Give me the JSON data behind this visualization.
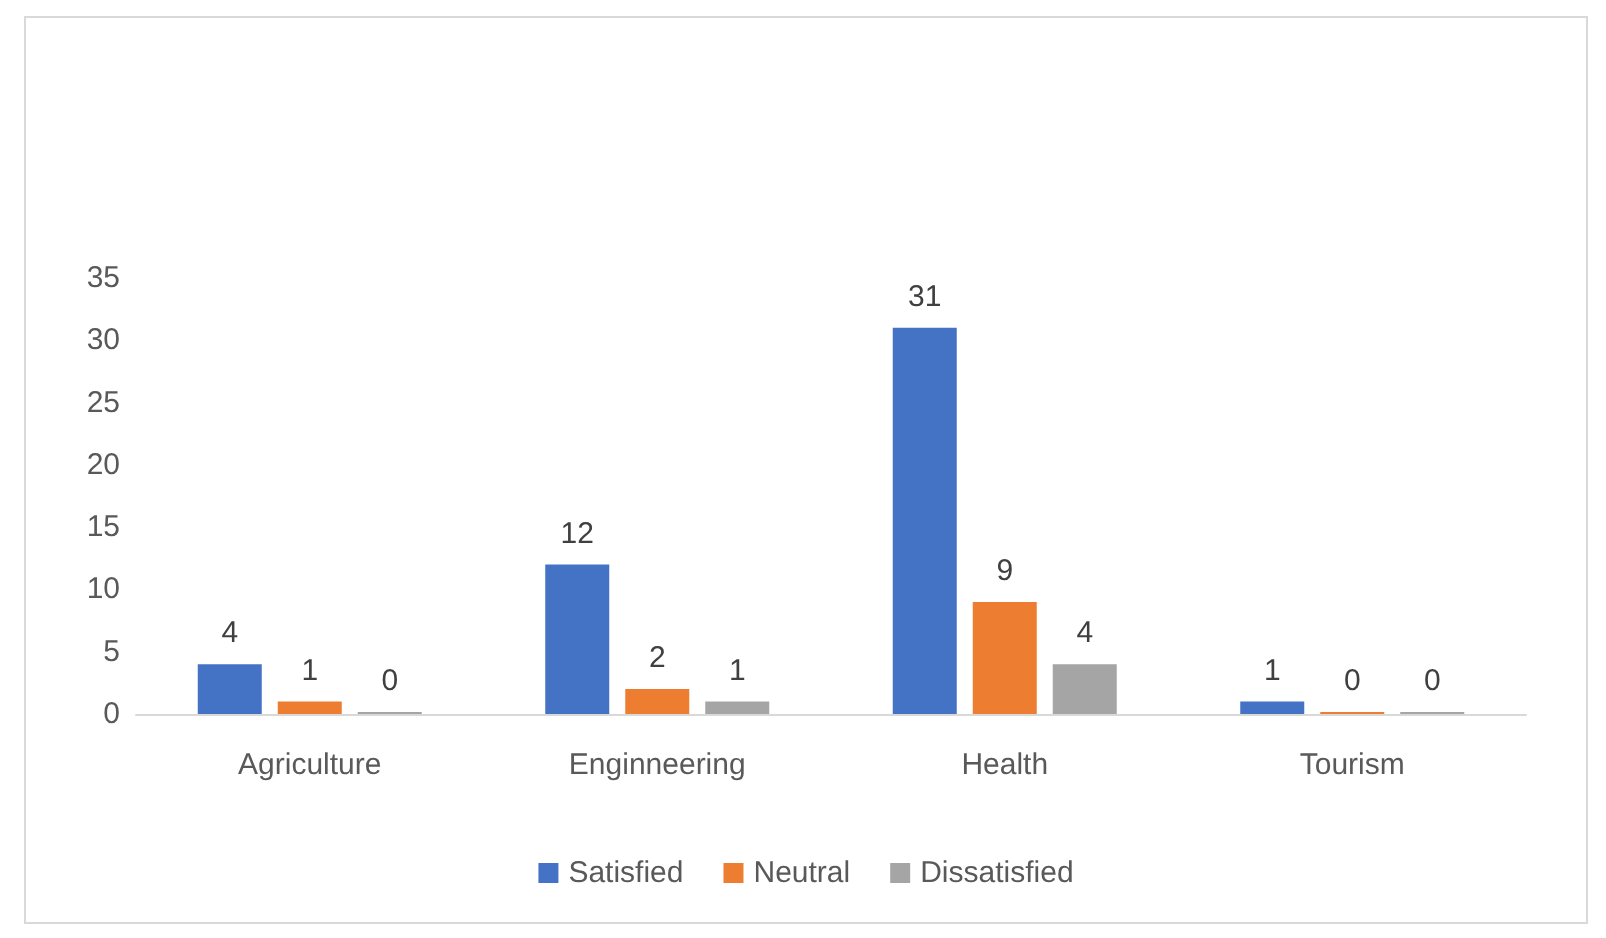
{
  "chart_data": {
    "type": "bar",
    "categories": [
      "Agriculture",
      "Enginneering",
      "Health",
      "Tourism"
    ],
    "series": [
      {
        "name": "Satisfied",
        "color": "#4472c4",
        "values": [
          4,
          12,
          31,
          1
        ]
      },
      {
        "name": "Neutral",
        "color": "#ed7d31",
        "values": [
          1,
          2,
          9,
          0
        ]
      },
      {
        "name": "Dissatisfied",
        "color": "#a5a5a5",
        "values": [
          0,
          1,
          4,
          0
        ]
      }
    ],
    "ylim": [
      0,
      35
    ],
    "yticks": [
      0,
      5,
      10,
      15,
      20,
      25,
      30,
      35
    ],
    "grid": false,
    "legend": "bottom",
    "data_labels": true
  }
}
